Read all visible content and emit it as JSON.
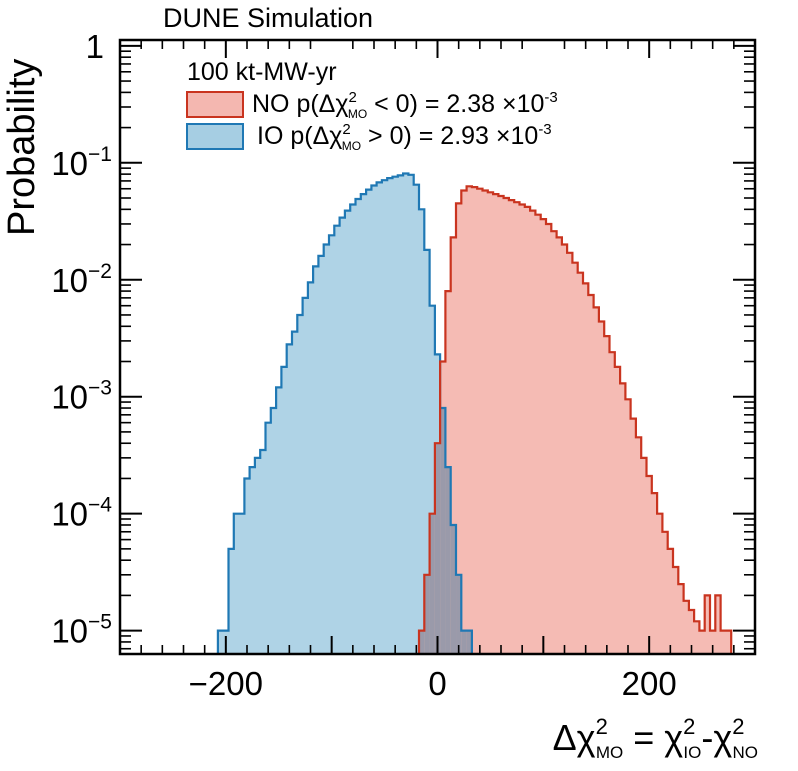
{
  "chart_data": {
    "type": "histogram",
    "title": "DUNE Simulation",
    "ylabel": "Probability",
    "xlabel": {
      "delta": "Δχ",
      "sup": "2",
      "mo": "MO",
      "eq": " = χ",
      "io": "IO",
      "dash": "-χ",
      "no": "NO"
    },
    "xlim": [
      -300,
      300
    ],
    "ylim_log": [
      -5.2,
      0.05
    ],
    "x_ticks": [
      {
        "value": -200,
        "label": "−200"
      },
      {
        "value": 0,
        "label": "0"
      },
      {
        "value": 200,
        "label": "200"
      }
    ],
    "y_ticks": [
      {
        "exp": 0,
        "label": "1"
      },
      {
        "exp": -1,
        "base": "10",
        "sup": "−1"
      },
      {
        "exp": -2,
        "base": "10",
        "sup": "−2"
      },
      {
        "exp": -3,
        "base": "10",
        "sup": "−3"
      },
      {
        "exp": -4,
        "base": "10",
        "sup": "−4"
      },
      {
        "exp": -5,
        "base": "10",
        "sup": "−5"
      }
    ],
    "legend": {
      "header": "100 kt-MW-yr",
      "entries": [
        {
          "name": "NO",
          "pre": "NO p(Δχ",
          "sup": "2",
          "sub": "MO",
          "post": " < 0) = 2.38 ×10",
          "exp": "-3"
        },
        {
          "name": "IO",
          "pre": "IO p(Δχ",
          "sup": "2",
          "sub": "MO",
          "post": " > 0) = 2.93 ×10",
          "exp": "-3"
        }
      ]
    },
    "series": [
      {
        "name": "IO",
        "fill": "#a6cee3",
        "stroke": "#1f78b4",
        "points": [
          [
            -205,
            1e-05
          ],
          [
            -200,
            1e-05
          ],
          [
            -195,
            5e-05
          ],
          [
            -190,
            0.0001
          ],
          [
            -185,
            0.0001
          ],
          [
            -180,
            0.0002
          ],
          [
            -175,
            0.00025
          ],
          [
            -170,
            0.0003
          ],
          [
            -165,
            0.00035
          ],
          [
            -160,
            0.0006
          ],
          [
            -155,
            0.0008
          ],
          [
            -150,
            0.0012
          ],
          [
            -145,
            0.0018
          ],
          [
            -140,
            0.0028
          ],
          [
            -135,
            0.0036
          ],
          [
            -130,
            0.005
          ],
          [
            -125,
            0.007
          ],
          [
            -120,
            0.0095
          ],
          [
            -115,
            0.013
          ],
          [
            -110,
            0.016
          ],
          [
            -105,
            0.02
          ],
          [
            -100,
            0.024
          ],
          [
            -95,
            0.029
          ],
          [
            -90,
            0.034
          ],
          [
            -85,
            0.039
          ],
          [
            -80,
            0.044
          ],
          [
            -75,
            0.049
          ],
          [
            -70,
            0.054
          ],
          [
            -65,
            0.059
          ],
          [
            -60,
            0.064
          ],
          [
            -55,
            0.068
          ],
          [
            -50,
            0.071
          ],
          [
            -45,
            0.074
          ],
          [
            -40,
            0.076
          ],
          [
            -35,
            0.078
          ],
          [
            -30,
            0.081
          ],
          [
            -25,
            0.079
          ],
          [
            -20,
            0.065
          ],
          [
            -15,
            0.04
          ],
          [
            -10,
            0.018
          ],
          [
            -5,
            0.006
          ],
          [
            0,
            0.0023
          ],
          [
            5,
            0.0008
          ],
          [
            10,
            0.00025
          ],
          [
            15,
            8e-05
          ],
          [
            20,
            3e-05
          ],
          [
            25,
            1e-05
          ],
          [
            30,
            1e-05
          ]
        ]
      },
      {
        "name": "NO",
        "fill": "#f4b7b0",
        "stroke": "#c9341f",
        "points": [
          [
            -15,
            1e-05
          ],
          [
            -10,
            3e-05
          ],
          [
            -5,
            0.0001
          ],
          [
            0,
            0.0004
          ],
          [
            5,
            0.002
          ],
          [
            10,
            0.008
          ],
          [
            15,
            0.023
          ],
          [
            20,
            0.045
          ],
          [
            25,
            0.058
          ],
          [
            30,
            0.063
          ],
          [
            35,
            0.062
          ],
          [
            40,
            0.06
          ],
          [
            45,
            0.058
          ],
          [
            50,
            0.056
          ],
          [
            55,
            0.054
          ],
          [
            60,
            0.052
          ],
          [
            65,
            0.05
          ],
          [
            70,
            0.048
          ],
          [
            75,
            0.046
          ],
          [
            80,
            0.044
          ],
          [
            85,
            0.042
          ],
          [
            90,
            0.039
          ],
          [
            95,
            0.036
          ],
          [
            100,
            0.033
          ],
          [
            105,
            0.03
          ],
          [
            110,
            0.026
          ],
          [
            115,
            0.023
          ],
          [
            120,
            0.02
          ],
          [
            125,
            0.017
          ],
          [
            130,
            0.014
          ],
          [
            135,
            0.0115
          ],
          [
            140,
            0.0093
          ],
          [
            145,
            0.0074
          ],
          [
            150,
            0.0058
          ],
          [
            155,
            0.0044
          ],
          [
            160,
            0.0033
          ],
          [
            165,
            0.0024
          ],
          [
            170,
            0.0018
          ],
          [
            175,
            0.0013
          ],
          [
            180,
            0.00095
          ],
          [
            185,
            0.00065
          ],
          [
            190,
            0.00045
          ],
          [
            195,
            0.0003
          ],
          [
            200,
            0.00021
          ],
          [
            205,
            0.00015
          ],
          [
            210,
            0.0001
          ],
          [
            215,
            7e-05
          ],
          [
            220,
            5e-05
          ],
          [
            225,
            3.5e-05
          ],
          [
            230,
            2.5e-05
          ],
          [
            235,
            1.8e-05
          ],
          [
            240,
            1.5e-05
          ],
          [
            245,
            1.2e-05
          ],
          [
            250,
            1e-05
          ],
          [
            255,
            2e-05
          ],
          [
            260,
            1e-05
          ],
          [
            265,
            2e-05
          ],
          [
            270,
            1e-05
          ],
          [
            275,
            1e-05
          ]
        ]
      }
    ]
  }
}
